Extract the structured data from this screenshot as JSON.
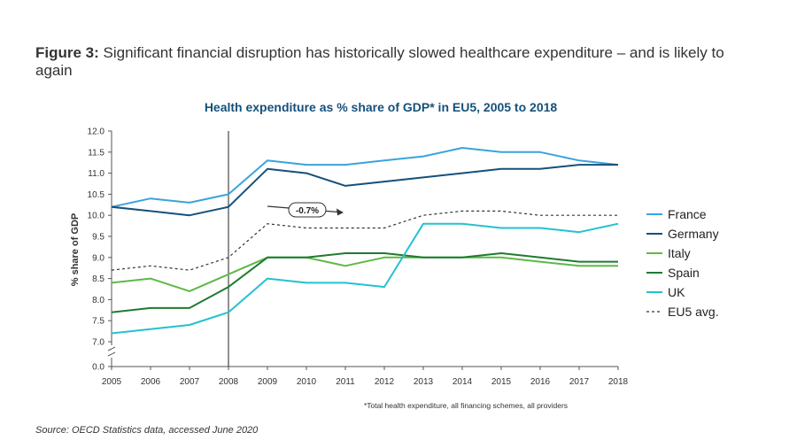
{
  "caption": {
    "label": "Figure 3:",
    "text": " Significant financial disruption has historically slowed healthcare expenditure – and is likely to again"
  },
  "source": "Source: OECD Statistics data, accessed June 2020",
  "colors": {
    "France": "#3ba3dc",
    "Germany": "#16507a",
    "Italy": "#5fb846",
    "Spain": "#1f7a30",
    "UK": "#24c1cf",
    "EU5 avg.": "#333333",
    "title": "#16507a"
  },
  "chart_data": {
    "type": "line",
    "title": "Health expenditure as % share of GDP* in EU5, 2005 to 2018",
    "ylabel": "% share of GDP",
    "xlabel": "",
    "footnote": "*Total health expenditure, all financing schemes, all providers",
    "annotation": "-0.7%",
    "x": [
      2005,
      2006,
      2007,
      2008,
      2009,
      2010,
      2011,
      2012,
      2013,
      2014,
      2015,
      2016,
      2017,
      2018
    ],
    "ylim": [
      7.0,
      12.0
    ],
    "y_axis_break": true,
    "y_ticks": [
      "12.0",
      "11.5",
      "11.0",
      "10.5",
      "10.0",
      "9.5",
      "9.0",
      "8.5",
      "8.0",
      "7.5",
      "7.0",
      "0.0"
    ],
    "grid": false,
    "vertical_marker_year": 2008,
    "legend_position": "right",
    "series": [
      {
        "name": "France",
        "style": "solid",
        "values": [
          10.2,
          10.4,
          10.3,
          10.5,
          11.3,
          11.2,
          11.2,
          11.3,
          11.4,
          11.6,
          11.5,
          11.5,
          11.3,
          11.2
        ]
      },
      {
        "name": "Germany",
        "style": "solid",
        "values": [
          10.2,
          10.1,
          10.0,
          10.2,
          11.1,
          11.0,
          10.7,
          10.8,
          10.9,
          11.0,
          11.1,
          11.1,
          11.2,
          11.2
        ]
      },
      {
        "name": "Italy",
        "style": "solid",
        "values": [
          8.4,
          8.5,
          8.2,
          8.6,
          9.0,
          9.0,
          8.8,
          9.0,
          9.0,
          9.0,
          9.0,
          8.9,
          8.8,
          8.8
        ]
      },
      {
        "name": "Spain",
        "style": "solid",
        "values": [
          7.7,
          7.8,
          7.8,
          8.3,
          9.0,
          9.0,
          9.1,
          9.1,
          9.0,
          9.0,
          9.1,
          9.0,
          8.9,
          8.9
        ]
      },
      {
        "name": "UK",
        "style": "solid",
        "values": [
          7.2,
          7.3,
          7.4,
          7.7,
          8.5,
          8.4,
          8.4,
          8.3,
          9.8,
          9.8,
          9.7,
          9.7,
          9.6,
          9.8
        ]
      },
      {
        "name": "EU5 avg.",
        "style": "dashed",
        "values": [
          8.7,
          8.8,
          8.7,
          9.0,
          9.8,
          9.7,
          9.7,
          9.7,
          10.0,
          10.1,
          10.1,
          10.0,
          10.0,
          10.0
        ]
      }
    ]
  }
}
